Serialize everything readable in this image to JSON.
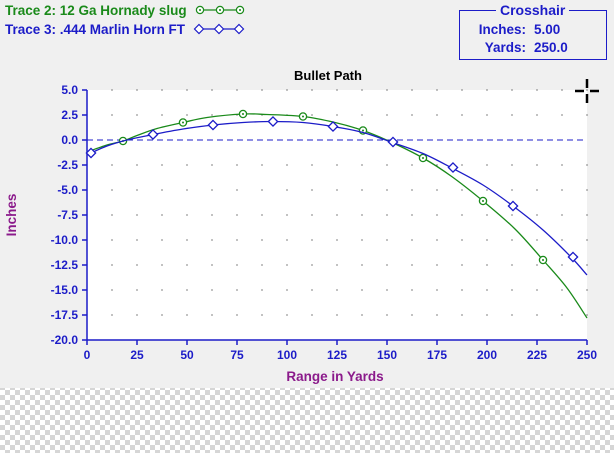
{
  "legend": {
    "trace2": {
      "label": "Trace 2:  12 Ga Hornady slug",
      "color": "#1a8a1a",
      "marker": "circle"
    },
    "trace3": {
      "label": "Trace 3:  .444 Marlin Horn FT",
      "color": "#1c1cc8",
      "marker": "diamond"
    }
  },
  "crosshair": {
    "title": "Crosshair",
    "inches_label": "Inches:",
    "inches_value": "5.00",
    "yards_label": "Yards:",
    "yards_value": "250.0",
    "icon": "crosshair-icon"
  },
  "colors": {
    "axis": "#1c1cc8",
    "axis_label": "#8b1a8b",
    "panel": "#f0f0f0",
    "plot_bg": "#ffffff"
  },
  "chart_data": {
    "type": "line",
    "title": "Bullet Path",
    "xlabel": "Range in Yards",
    "ylabel": "Inches",
    "xlim": [
      0,
      250
    ],
    "ylim": [
      -20,
      5
    ],
    "x_ticks": [
      0,
      25,
      50,
      75,
      100,
      125,
      150,
      175,
      200,
      225,
      250
    ],
    "y_ticks": [
      5.0,
      2.5,
      0.0,
      -2.5,
      -5.0,
      -7.5,
      -10.0,
      -12.5,
      -15.0,
      -17.5,
      -20.0
    ],
    "y_tick_labels": [
      "5.0",
      "2.5",
      "0.0",
      "-2.5",
      "-5.0",
      "-7.5",
      "-10.0",
      "-12.5",
      "-15.0",
      "-17.5",
      "-20.0"
    ],
    "grid": "dotted",
    "zero_line": "dashed",
    "series": [
      {
        "name": "12 Ga Hornady slug",
        "color": "#1a8a1a",
        "marker": "circle",
        "x": [
          0,
          10,
          18,
          25,
          35,
          48,
          60,
          78,
          90,
          108,
          124,
          138,
          152,
          168,
          182,
          198,
          214,
          228,
          240,
          250
        ],
        "y": [
          -1.2,
          -0.5,
          -0.1,
          0.45,
          1.15,
          1.75,
          2.25,
          2.6,
          2.55,
          2.35,
          1.75,
          0.95,
          -0.2,
          -1.8,
          -3.6,
          -6.1,
          -8.9,
          -12.0,
          -14.8,
          -17.8
        ],
        "markers_x": [
          18,
          48,
          78,
          108,
          138,
          168,
          198,
          228
        ],
        "markers_y": [
          -0.1,
          1.75,
          2.6,
          2.35,
          0.95,
          -1.8,
          -6.1,
          -12.0
        ]
      },
      {
        "name": ".444 Marlin Horn FT",
        "color": "#1c1cc8",
        "marker": "diamond",
        "x": [
          2,
          10,
          20,
          33,
          48,
          63,
          78,
          92,
          108,
          123,
          138,
          152,
          168,
          182,
          198,
          213,
          228,
          242,
          250
        ],
        "y": [
          -1.3,
          -0.6,
          0.0,
          0.55,
          1.1,
          1.5,
          1.75,
          1.85,
          1.75,
          1.35,
          0.75,
          -0.2,
          -1.35,
          -2.75,
          -4.5,
          -6.6,
          -9.0,
          -11.7,
          -13.5
        ],
        "markers_x": [
          2,
          33,
          63,
          93,
          123,
          153,
          183,
          213,
          243
        ],
        "markers_y": [
          -1.3,
          0.55,
          1.5,
          1.85,
          1.35,
          -0.2,
          -2.75,
          -6.6,
          -11.7
        ]
      }
    ]
  }
}
